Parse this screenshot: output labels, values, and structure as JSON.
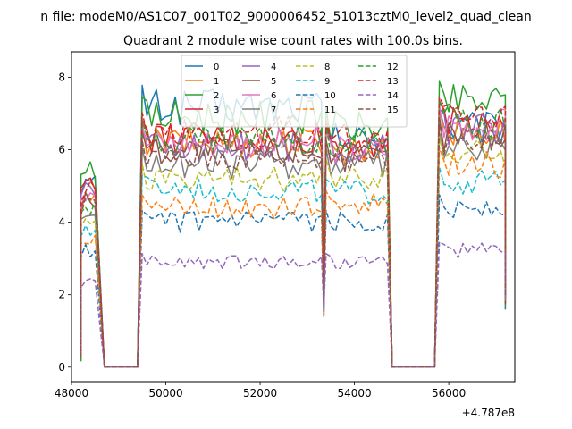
{
  "chart_data": {
    "type": "line",
    "suptitle": "n file: modeM0/AS1C07_001T02_9000006452_51013cztM0_level2_quad_clean",
    "title": "Quadrant 2 module wise count rates with 100.0s bins.",
    "xlabel": "",
    "ylabel": "",
    "x_offset_label": "+4.787e8",
    "xlim": [
      48000,
      57400
    ],
    "ylim": [
      -0.4,
      8.7
    ],
    "x_ticks": [
      48000,
      50000,
      52000,
      54000,
      56000
    ],
    "y_ticks": [
      0,
      2,
      4,
      6,
      8
    ],
    "x_tick_labels": [
      "48000",
      "50000",
      "52000",
      "54000",
      "56000"
    ],
    "y_tick_labels": [
      "0",
      "2",
      "4",
      "6",
      "8"
    ],
    "legend_position": "top",
    "segments": [
      {
        "x0": 48200,
        "x1": 48500
      },
      {
        "x0": 49500,
        "x1": 53300
      },
      {
        "x0": 53400,
        "x1": 54700
      },
      {
        "x0": 55800,
        "x1": 57200
      }
    ],
    "series": [
      {
        "name": "0",
        "style": "solid",
        "color": "#1f77b4",
        "levels": [
          5.0,
          7.2,
          6.3,
          6.6
        ]
      },
      {
        "name": "1",
        "style": "solid",
        "color": "#ff7f0e",
        "levels": [
          4.5,
          6.2,
          6.0,
          6.5
        ]
      },
      {
        "name": "2",
        "style": "solid",
        "color": "#2ca02c",
        "levels": [
          5.6,
          6.9,
          6.6,
          7.3
        ]
      },
      {
        "name": "3",
        "style": "solid",
        "color": "#d62728",
        "levels": [
          5.2,
          6.3,
          6.2,
          6.8
        ]
      },
      {
        "name": "4",
        "style": "solid",
        "color": "#9467bd",
        "levels": [
          5.0,
          6.1,
          6.0,
          6.6
        ]
      },
      {
        "name": "5",
        "style": "solid",
        "color": "#8c564b",
        "levels": [
          4.6,
          6.0,
          5.8,
          6.4
        ]
      },
      {
        "name": "6",
        "style": "solid",
        "color": "#e377c2",
        "levels": [
          4.9,
          6.2,
          6.0,
          6.7
        ]
      },
      {
        "name": "7",
        "style": "solid",
        "color": "#7f7f7f",
        "levels": [
          4.3,
          5.6,
          5.6,
          6.0
        ]
      },
      {
        "name": "8",
        "style": "dashed",
        "color": "#bcbd22",
        "levels": [
          4.1,
          5.2,
          5.3,
          5.9
        ]
      },
      {
        "name": "9",
        "style": "dashed",
        "color": "#17becf",
        "levels": [
          3.8,
          4.9,
          4.8,
          5.1
        ]
      },
      {
        "name": "10",
        "style": "dashed",
        "color": "#1f77b4",
        "levels": [
          3.2,
          4.0,
          4.0,
          4.4
        ]
      },
      {
        "name": "11",
        "style": "dashed",
        "color": "#ff7f0e",
        "levels": [
          3.6,
          4.4,
          4.5,
          5.6
        ]
      },
      {
        "name": "12",
        "style": "dashed",
        "color": "#2ca02c",
        "levels": [
          4.5,
          6.3,
          6.2,
          6.8
        ]
      },
      {
        "name": "13",
        "style": "dashed",
        "color": "#d62728",
        "levels": [
          4.8,
          6.5,
          6.3,
          6.9
        ]
      },
      {
        "name": "14",
        "style": "dashed",
        "color": "#9467bd",
        "levels": [
          2.3,
          2.9,
          2.9,
          3.2
        ]
      },
      {
        "name": "15",
        "style": "dashed",
        "color": "#8c564b",
        "levels": [
          4.4,
          5.8,
          5.8,
          6.3
        ]
      }
    ]
  }
}
